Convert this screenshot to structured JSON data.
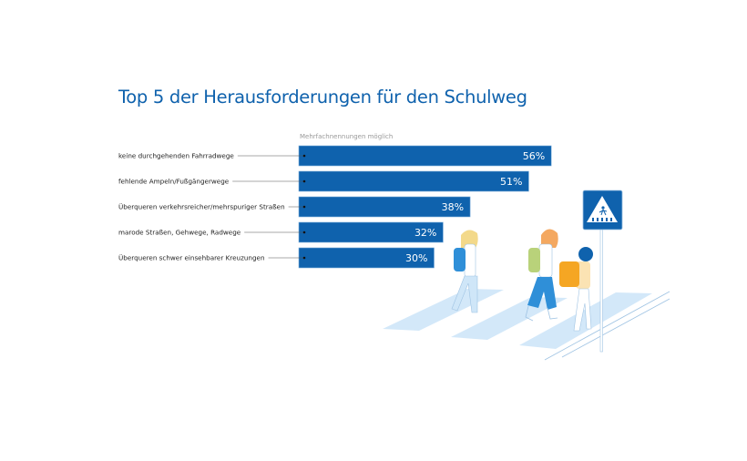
{
  "title": "Top 5 der Herausforderungen für den Schulweg",
  "note": "Mehrfachnennungen möglich",
  "colors": {
    "bar": "#0f62ad",
    "title": "#0f62ad",
    "sign": "#0f62ad",
    "crosswalk": "#cfe6f8"
  },
  "illustration": "children-crossing-crosswalk-with-pedestrian-crossing-sign",
  "chart_data": {
    "type": "bar",
    "orientation": "horizontal",
    "title": "Top 5 der Herausforderungen für den Schulweg",
    "subtitle": "Mehrfachnennungen möglich",
    "unit": "%",
    "categories": [
      "keine durchgehenden Fahrradwege",
      "fehlende Ampeln/Fußgängerwege",
      "Überqueren verkehrsreicher/mehrspuriger Straßen",
      "marode Straßen, Gehwege, Radwege",
      "Überqueren schwer einsehbarer Kreuzungen"
    ],
    "values": [
      56,
      51,
      38,
      32,
      30
    ],
    "labels": [
      "56%",
      "51%",
      "38%",
      "32%",
      "30%"
    ],
    "grid": false
  }
}
